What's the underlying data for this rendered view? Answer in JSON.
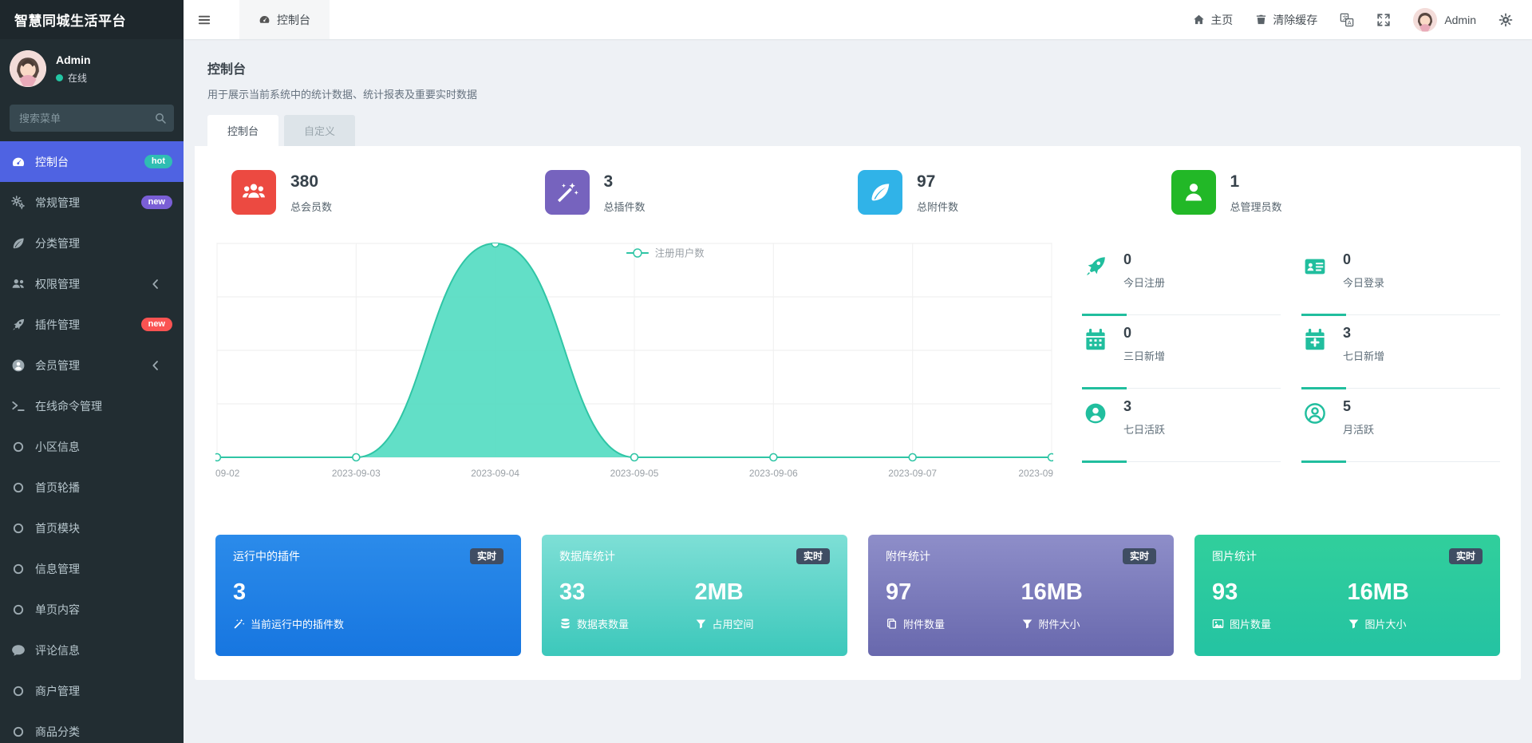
{
  "colors": {
    "accent": "#21be9e",
    "active_menu": "#4f63e2",
    "panel_bg": "#ffffff",
    "content_bg": "#eef1f5",
    "sidebar_bg": "#222d32"
  },
  "sidebar": {
    "brand": "智慧同城生活平台",
    "user": {
      "name": "Admin",
      "status": "在线"
    },
    "search_placeholder": "搜索菜单",
    "menu": [
      {
        "icon": "dashboard-icon",
        "label": "控制台",
        "badge": "hot",
        "badge_color": "#2fbdb3",
        "active": true
      },
      {
        "icon": "gears-icon",
        "label": "常规管理",
        "badge": "new",
        "badge_color": "#7a5fd6"
      },
      {
        "icon": "leaf-icon",
        "label": "分类管理"
      },
      {
        "icon": "users-icon",
        "label": "权限管理",
        "arrow": true
      },
      {
        "icon": "rocket-icon",
        "label": "插件管理",
        "badge": "new",
        "badge_color": "#fa5352"
      },
      {
        "icon": "user-circle-icon",
        "label": "会员管理",
        "arrow": true
      },
      {
        "icon": "terminal-icon",
        "label": "在线命令管理"
      },
      {
        "icon": "circle-icon",
        "label": "小区信息"
      },
      {
        "icon": "circle-icon",
        "label": "首页轮播"
      },
      {
        "icon": "circle-icon",
        "label": "首页模块"
      },
      {
        "icon": "circle-icon",
        "label": "信息管理"
      },
      {
        "icon": "circle-icon",
        "label": "单页内容"
      },
      {
        "icon": "comment-icon",
        "label": "评论信息"
      },
      {
        "icon": "circle-icon",
        "label": "商户管理"
      },
      {
        "icon": "circle-icon",
        "label": "商品分类"
      }
    ]
  },
  "navbar": {
    "tab": {
      "icon": "dashboard-icon",
      "label": "控制台"
    },
    "home": "主页",
    "clear_cache": "清除缓存",
    "user": "Admin"
  },
  "page": {
    "title": "控制台",
    "subtitle": "用于展示当前系统中的统计数据、统计报表及重要实时数据",
    "tabs": [
      {
        "label": "控制台",
        "active": true
      },
      {
        "label": "自定义",
        "active": false
      }
    ]
  },
  "stats": [
    {
      "icon": "users-group-icon",
      "color": "#ec4a41",
      "value": "380",
      "label": "总会员数"
    },
    {
      "icon": "magic-wand-icon",
      "color": "#7663be",
      "value": "3",
      "label": "总插件数"
    },
    {
      "icon": "leaf-icon",
      "color": "#30b3e8",
      "value": "97",
      "label": "总附件数"
    },
    {
      "icon": "user-icon",
      "color": "#22b827",
      "value": "1",
      "label": "总管理员数"
    }
  ],
  "chart_data": {
    "type": "area",
    "title": "",
    "xlabel": "",
    "ylabel": "",
    "x": [
      "09-02",
      "2023-09-03",
      "2023-09-04",
      "2023-09-05",
      "2023-09-06",
      "2023-09-07",
      "2023-09"
    ],
    "series": [
      {
        "name": "注册用户数",
        "values": [
          0,
          0,
          380,
          0,
          0,
          0,
          0
        ]
      }
    ],
    "ylim": [
      0,
      380
    ],
    "grid": true,
    "smooth": true,
    "legend": [
      "注册用户数"
    ],
    "legend_position": "top-center",
    "area_color": "#55dcc2",
    "line_color": "#2fc5a5"
  },
  "mini_stats": [
    {
      "icon": "rocket-icon",
      "value": "0",
      "label": "今日注册"
    },
    {
      "icon": "id-card-icon",
      "value": "0",
      "label": "今日登录"
    },
    {
      "icon": "calendar-icon",
      "value": "0",
      "label": "三日新增"
    },
    {
      "icon": "calendar-plus-icon",
      "value": "3",
      "label": "七日新增"
    },
    {
      "icon": "user-circle-icon",
      "value": "3",
      "label": "七日活跃"
    },
    {
      "icon": "user-circle-o-icon",
      "value": "5",
      "label": "月活跃"
    }
  ],
  "cards": [
    {
      "title": "运行中的插件",
      "badge": "实时",
      "gradient": [
        "#2b8bea",
        "#1776e0"
      ],
      "metrics": [
        {
          "value": "3",
          "icon": "magic-wand-icon",
          "label": "当前运行中的插件数"
        }
      ]
    },
    {
      "title": "数据库统计",
      "badge": "实时",
      "gradient": [
        "#7edfd6",
        "#3cc8bb"
      ],
      "metrics": [
        {
          "value": "33",
          "icon": "database-icon",
          "label": "数据表数量"
        },
        {
          "value": "2MB",
          "icon": "funnel-icon",
          "label": "占用空间"
        }
      ]
    },
    {
      "title": "附件统计",
      "badge": "实时",
      "gradient": [
        "#8e8ec9",
        "#6868ad"
      ],
      "metrics": [
        {
          "value": "97",
          "icon": "copy-icon",
          "label": "附件数量"
        },
        {
          "value": "16MB",
          "icon": "funnel-icon",
          "label": "附件大小"
        }
      ]
    },
    {
      "title": "图片统计",
      "badge": "实时",
      "gradient": [
        "#31cf9c",
        "#24c3a2"
      ],
      "metrics": [
        {
          "value": "93",
          "icon": "image-icon",
          "label": "图片数量"
        },
        {
          "value": "16MB",
          "icon": "funnel-icon",
          "label": "图片大小"
        }
      ]
    }
  ]
}
